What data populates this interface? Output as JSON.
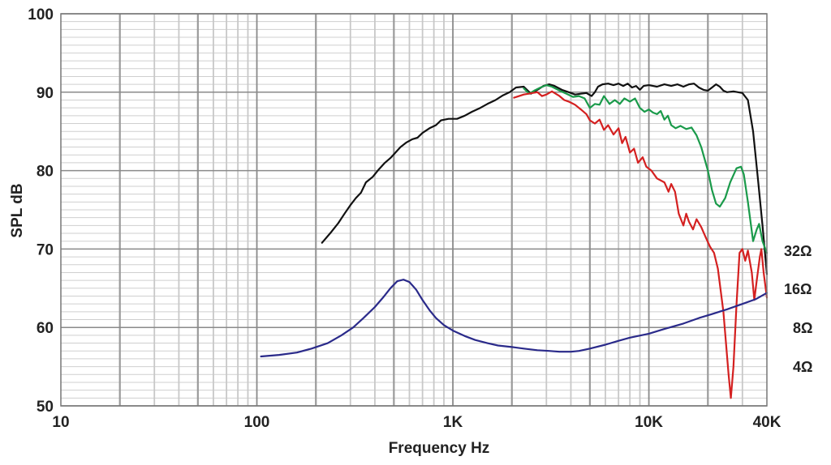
{
  "chart_data": {
    "type": "line",
    "xlabel": "Frequency Hz",
    "ylabel": "SPL dB",
    "xscale": "log",
    "xlim": [
      10,
      40000
    ],
    "ylim": [
      50,
      100
    ],
    "grid": true,
    "x_ticks": [
      {
        "value": 10,
        "label": "10"
      },
      {
        "value": 100,
        "label": "100"
      },
      {
        "value": 1000,
        "label": "1K"
      },
      {
        "value": 10000,
        "label": "10K"
      },
      {
        "value": 40000,
        "label": "40K"
      }
    ],
    "y_ticks": [
      {
        "value": 50,
        "label": "50"
      },
      {
        "value": 60,
        "label": "60"
      },
      {
        "value": 70,
        "label": "70"
      },
      {
        "value": 80,
        "label": "80"
      },
      {
        "value": 90,
        "label": "90"
      },
      {
        "value": 100,
        "label": "100"
      }
    ],
    "impedance_scale_labels": [
      "32Ω",
      "16Ω",
      "8Ω",
      "4Ω"
    ],
    "series": [
      {
        "color": "#111111",
        "points": [
          [
            215,
            70.8
          ],
          [
            240,
            72.2
          ],
          [
            260,
            73.3
          ],
          [
            280,
            74.5
          ],
          [
            300,
            75.6
          ],
          [
            320,
            76.5
          ],
          [
            340,
            77.2
          ],
          [
            360,
            78.5
          ],
          [
            390,
            79.2
          ],
          [
            420,
            80.2
          ],
          [
            450,
            81.0
          ],
          [
            480,
            81.6
          ],
          [
            510,
            82.3
          ],
          [
            540,
            83.0
          ],
          [
            580,
            83.6
          ],
          [
            620,
            84.0
          ],
          [
            660,
            84.2
          ],
          [
            700,
            84.8
          ],
          [
            760,
            85.4
          ],
          [
            820,
            85.8
          ],
          [
            870,
            86.4
          ],
          [
            950,
            86.6
          ],
          [
            1050,
            86.6
          ],
          [
            1150,
            87.0
          ],
          [
            1250,
            87.5
          ],
          [
            1380,
            88.0
          ],
          [
            1500,
            88.5
          ],
          [
            1650,
            89.0
          ],
          [
            1800,
            89.6
          ],
          [
            1950,
            90.0
          ],
          [
            2100,
            90.6
          ],
          [
            2300,
            90.7
          ],
          [
            2500,
            89.8
          ],
          [
            2700,
            90.3
          ],
          [
            2900,
            90.8
          ],
          [
            3100,
            91.0
          ],
          [
            3300,
            90.8
          ],
          [
            3600,
            90.3
          ],
          [
            3900,
            90.0
          ],
          [
            4200,
            89.7
          ],
          [
            4500,
            89.8
          ],
          [
            4800,
            89.9
          ],
          [
            5100,
            89.5
          ],
          [
            5300,
            90.0
          ],
          [
            5500,
            90.7
          ],
          [
            5800,
            91.0
          ],
          [
            6200,
            91.1
          ],
          [
            6600,
            90.9
          ],
          [
            7000,
            91.1
          ],
          [
            7400,
            90.8
          ],
          [
            7800,
            91.1
          ],
          [
            8200,
            90.6
          ],
          [
            8600,
            90.8
          ],
          [
            9000,
            90.3
          ],
          [
            9400,
            90.8
          ],
          [
            10000,
            90.9
          ],
          [
            11000,
            90.7
          ],
          [
            12000,
            91.0
          ],
          [
            13000,
            90.8
          ],
          [
            14000,
            91.0
          ],
          [
            15000,
            90.7
          ],
          [
            16000,
            91.0
          ],
          [
            17000,
            91.1
          ],
          [
            18000,
            90.6
          ],
          [
            19000,
            90.3
          ],
          [
            20000,
            90.2
          ],
          [
            21000,
            90.6
          ],
          [
            22000,
            91.0
          ],
          [
            23000,
            90.7
          ],
          [
            24000,
            90.2
          ],
          [
            25000,
            90.0
          ],
          [
            27000,
            90.1
          ],
          [
            30000,
            89.9
          ],
          [
            32000,
            89.0
          ],
          [
            34000,
            85.0
          ],
          [
            36000,
            79.0
          ],
          [
            38000,
            73.0
          ],
          [
            40000,
            66.8
          ]
        ]
      },
      {
        "color": "#1a9a4a",
        "points": [
          [
            2300,
            90.5
          ],
          [
            2450,
            89.8
          ],
          [
            2600,
            90.2
          ],
          [
            2800,
            90.6
          ],
          [
            3000,
            90.9
          ],
          [
            3200,
            90.7
          ],
          [
            3500,
            90.2
          ],
          [
            3800,
            89.8
          ],
          [
            4100,
            89.4
          ],
          [
            4400,
            89.5
          ],
          [
            4700,
            89.2
          ],
          [
            5000,
            88.0
          ],
          [
            5300,
            88.5
          ],
          [
            5600,
            88.4
          ],
          [
            5900,
            89.5
          ],
          [
            6300,
            88.5
          ],
          [
            6700,
            89.0
          ],
          [
            7100,
            88.5
          ],
          [
            7500,
            89.2
          ],
          [
            8000,
            88.8
          ],
          [
            8500,
            89.2
          ],
          [
            9000,
            88.0
          ],
          [
            9500,
            87.5
          ],
          [
            10000,
            87.8
          ],
          [
            10500,
            87.4
          ],
          [
            11000,
            87.2
          ],
          [
            11500,
            87.6
          ],
          [
            12000,
            86.5
          ],
          [
            12500,
            87.0
          ],
          [
            13000,
            85.8
          ],
          [
            13700,
            85.4
          ],
          [
            14500,
            85.7
          ],
          [
            15500,
            85.3
          ],
          [
            16500,
            85.5
          ],
          [
            17500,
            84.5
          ],
          [
            18500,
            83.0
          ],
          [
            20000,
            80.0
          ],
          [
            21000,
            77.5
          ],
          [
            22000,
            75.8
          ],
          [
            23000,
            75.4
          ],
          [
            24500,
            76.5
          ],
          [
            26000,
            78.5
          ],
          [
            28000,
            80.3
          ],
          [
            29500,
            80.5
          ],
          [
            30500,
            79.5
          ],
          [
            32000,
            76.0
          ],
          [
            34000,
            71.0
          ],
          [
            35500,
            72.5
          ],
          [
            36500,
            73.2
          ],
          [
            38000,
            71.0
          ],
          [
            40000,
            69.5
          ]
        ]
      },
      {
        "color": "#d42020",
        "points": [
          [
            2050,
            89.3
          ],
          [
            2300,
            89.7
          ],
          [
            2550,
            89.9
          ],
          [
            2700,
            90.0
          ],
          [
            2850,
            89.5
          ],
          [
            3000,
            89.7
          ],
          [
            3200,
            90.1
          ],
          [
            3500,
            89.5
          ],
          [
            3700,
            89.0
          ],
          [
            3900,
            88.8
          ],
          [
            4200,
            88.4
          ],
          [
            4500,
            87.8
          ],
          [
            4800,
            87.2
          ],
          [
            5000,
            86.4
          ],
          [
            5300,
            86.0
          ],
          [
            5600,
            86.5
          ],
          [
            5900,
            85.2
          ],
          [
            6200,
            85.8
          ],
          [
            6600,
            84.6
          ],
          [
            7000,
            85.4
          ],
          [
            7300,
            83.5
          ],
          [
            7600,
            84.3
          ],
          [
            8000,
            82.3
          ],
          [
            8400,
            82.8
          ],
          [
            8800,
            81.0
          ],
          [
            9300,
            81.7
          ],
          [
            9700,
            80.5
          ],
          [
            10300,
            80.0
          ],
          [
            11000,
            79.0
          ],
          [
            12000,
            78.5
          ],
          [
            12600,
            77.3
          ],
          [
            13000,
            78.3
          ],
          [
            13600,
            77.3
          ],
          [
            14200,
            74.5
          ],
          [
            15000,
            73.0
          ],
          [
            15500,
            74.5
          ],
          [
            16000,
            73.5
          ],
          [
            16800,
            72.5
          ],
          [
            17500,
            73.8
          ],
          [
            18500,
            72.8
          ],
          [
            19500,
            71.5
          ],
          [
            20500,
            70.3
          ],
          [
            21500,
            69.5
          ],
          [
            22500,
            67.5
          ],
          [
            24000,
            62.0
          ],
          [
            25500,
            54.0
          ],
          [
            26200,
            51.0
          ],
          [
            27000,
            55.0
          ],
          [
            28000,
            63.0
          ],
          [
            29000,
            69.5
          ],
          [
            30000,
            70.0
          ],
          [
            31000,
            68.5
          ],
          [
            32000,
            69.8
          ],
          [
            33500,
            67.0
          ],
          [
            34500,
            63.5
          ],
          [
            35500,
            66.0
          ],
          [
            36800,
            69.0
          ],
          [
            37500,
            70.0
          ],
          [
            38500,
            67.0
          ],
          [
            40000,
            63.8
          ]
        ]
      },
      {
        "color": "#2a2a8a",
        "points": [
          [
            105,
            56.3
          ],
          [
            130,
            56.5
          ],
          [
            160,
            56.8
          ],
          [
            190,
            57.3
          ],
          [
            230,
            58.0
          ],
          [
            270,
            59.0
          ],
          [
            310,
            60.0
          ],
          [
            350,
            61.2
          ],
          [
            400,
            62.6
          ],
          [
            440,
            63.8
          ],
          [
            480,
            65.0
          ],
          [
            520,
            65.9
          ],
          [
            560,
            66.1
          ],
          [
            600,
            65.8
          ],
          [
            650,
            64.8
          ],
          [
            700,
            63.5
          ],
          [
            760,
            62.2
          ],
          [
            820,
            61.2
          ],
          [
            900,
            60.3
          ],
          [
            1000,
            59.6
          ],
          [
            1150,
            58.9
          ],
          [
            1300,
            58.4
          ],
          [
            1500,
            58.0
          ],
          [
            1700,
            57.7
          ],
          [
            2000,
            57.5
          ],
          [
            2300,
            57.3
          ],
          [
            2700,
            57.1
          ],
          [
            3100,
            57.0
          ],
          [
            3500,
            56.9
          ],
          [
            4000,
            56.9
          ],
          [
            4400,
            57.0
          ],
          [
            5000,
            57.3
          ],
          [
            6000,
            57.8
          ],
          [
            7000,
            58.3
          ],
          [
            8000,
            58.7
          ],
          [
            10000,
            59.2
          ],
          [
            12000,
            59.8
          ],
          [
            15000,
            60.5
          ],
          [
            18000,
            61.2
          ],
          [
            21000,
            61.7
          ],
          [
            25000,
            62.3
          ],
          [
            30000,
            63.0
          ],
          [
            35000,
            63.6
          ],
          [
            40000,
            64.4
          ]
        ]
      }
    ]
  }
}
